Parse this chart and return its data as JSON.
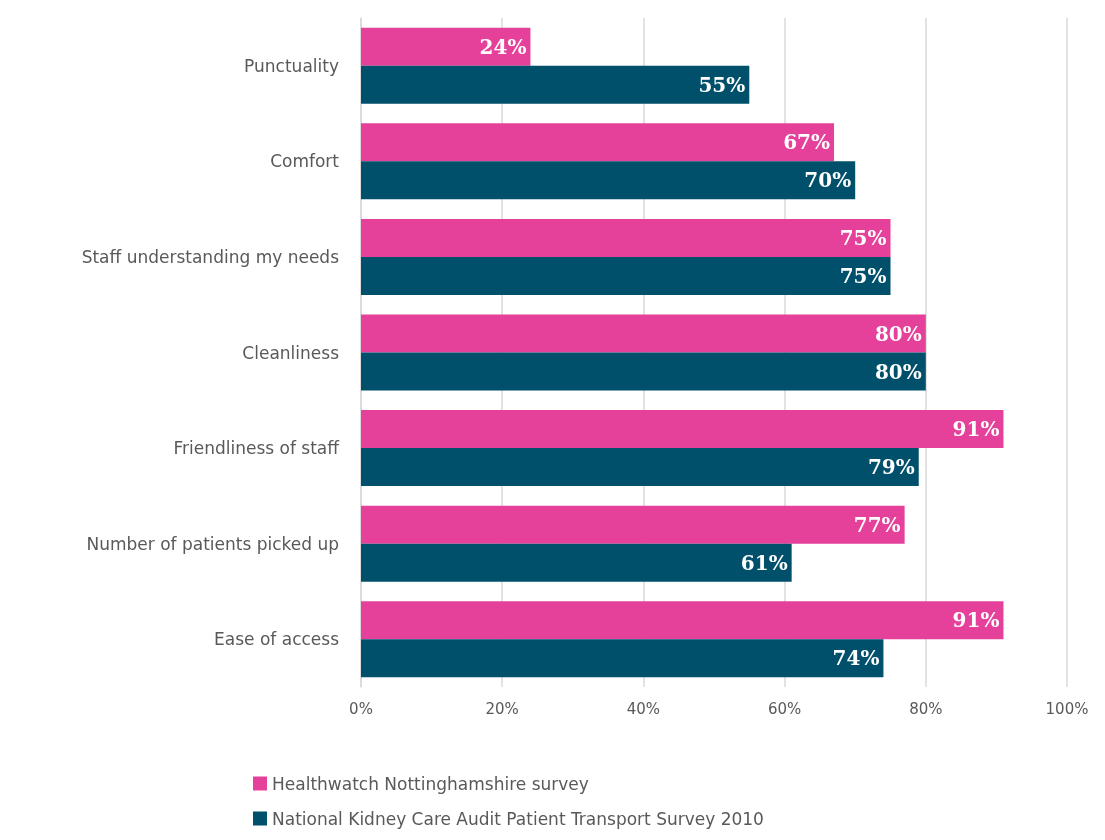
{
  "chart_data": {
    "type": "bar",
    "orientation": "horizontal",
    "categories": [
      "Punctuality",
      "Comfort",
      "Staff understanding my needs",
      "Cleanliness",
      "Friendliness of staff",
      "Number of patients picked up",
      "Ease of access"
    ],
    "series": [
      {
        "name": "Healthwatch Nottinghamshire survey",
        "color": "#e5409a",
        "values": [
          24,
          67,
          75,
          80,
          91,
          77,
          91
        ],
        "value_labels": [
          "24%",
          "67%",
          "75%",
          "80%",
          "91%",
          "77%",
          "91%"
        ]
      },
      {
        "name": "National Kidney Care Audit Patient Transport Survey 2010",
        "color": "#004f6b",
        "values": [
          55,
          70,
          75,
          80,
          79,
          61,
          74
        ],
        "value_labels": [
          "55%",
          "70%",
          "75%",
          "80%",
          "79%",
          "61%",
          "74%"
        ]
      }
    ],
    "xlim": [
      0,
      100
    ],
    "xticks": [
      {
        "value": 0,
        "label": "0%"
      },
      {
        "value": 20,
        "label": "20%"
      },
      {
        "value": 40,
        "label": "40%"
      },
      {
        "value": 60,
        "label": "60%"
      },
      {
        "value": 80,
        "label": "80%"
      },
      {
        "value": 100,
        "label": "100%"
      }
    ],
    "grid": "x",
    "legend": "bottom"
  }
}
